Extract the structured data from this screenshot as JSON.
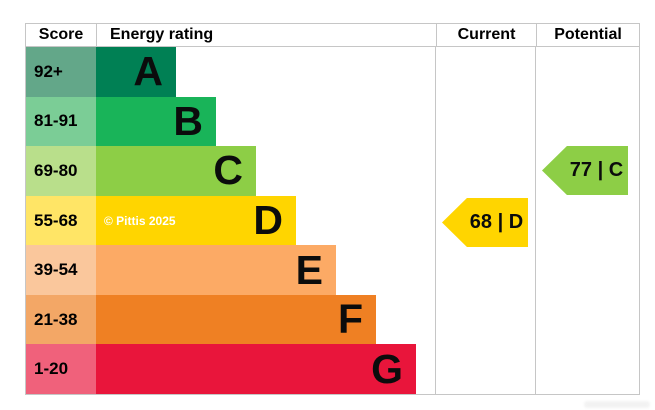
{
  "header": {
    "score": "Score",
    "energy_rating": "Energy rating",
    "current": "Current",
    "potential": "Potential"
  },
  "copyright": "© Pittis 2025",
  "colors": {
    "band_a": "#008054",
    "band_b": "#19b459",
    "band_c": "#8dce46",
    "band_d": "#ffd500",
    "band_e": "#fcaa65",
    "band_f": "#ef8023",
    "band_g": "#e9153b",
    "border": "#c6c6c6",
    "current_arrow": "#ffd500",
    "potential_arrow": "#8dce46"
  },
  "chart_data": {
    "type": "bar",
    "title": "Energy rating",
    "orientation": "horizontal",
    "legend_position": "none",
    "grid": false,
    "bands": [
      {
        "letter": "A",
        "score": "92+",
        "color": "#008054",
        "score_cell_color": "#63a789",
        "bar_length_rank": 1
      },
      {
        "letter": "B",
        "score": "81-91",
        "color": "#19b459",
        "score_cell_color": "#7bcd96",
        "bar_length_rank": 2
      },
      {
        "letter": "C",
        "score": "69-80",
        "color": "#8dce46",
        "score_cell_color": "#b9df8b",
        "bar_length_rank": 3
      },
      {
        "letter": "D",
        "score": "55-68",
        "color": "#ffd500",
        "score_cell_color": "#ffe566",
        "bar_length_rank": 4
      },
      {
        "letter": "E",
        "score": "39-54",
        "color": "#fcaa65",
        "score_cell_color": "#fac79c",
        "bar_length_rank": 5
      },
      {
        "letter": "F",
        "score": "21-38",
        "color": "#f3a766",
        "score_cell_color": "#f3a766",
        "bar_length_rank": 6
      },
      {
        "letter": "G",
        "score": "1-20",
        "color": "#e9153b",
        "score_cell_color": "#f0617b",
        "bar_length_rank": 7
      }
    ],
    "current": {
      "value": 68,
      "band": "D",
      "label": "68 | D",
      "arrow_color": "#ffd500"
    },
    "potential": {
      "value": 77,
      "band": "C",
      "label": "77 | C",
      "arrow_color": "#8dce46"
    }
  }
}
